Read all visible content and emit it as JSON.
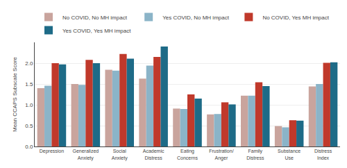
{
  "chart_data": {
    "type": "bar",
    "categories": [
      "Depression",
      "Generalized\nAnxiety",
      "Social\nAnxiety",
      "Academic\nDistress",
      "Eating\nConcerns",
      "Frustration/\nAnger",
      "Family\nDistress",
      "Substance\nUse",
      "Distress\nIndex"
    ],
    "series": [
      {
        "name": "No COVID, No MH impact",
        "color": "#c9a49d",
        "values": [
          1.4,
          1.5,
          1.84,
          1.63,
          0.91,
          0.77,
          1.22,
          0.49,
          1.44
        ]
      },
      {
        "name": "Yes COVID, No MH impact",
        "color": "#8bb4c8",
        "values": [
          1.46,
          1.48,
          1.82,
          1.94,
          0.9,
          0.78,
          1.22,
          0.46,
          1.5
        ]
      },
      {
        "name": "No COVID, Yes MH impact",
        "color": "#c0392b",
        "values": [
          2.0,
          2.08,
          2.22,
          2.15,
          1.25,
          1.06,
          1.54,
          0.63,
          2.01
        ]
      },
      {
        "name": "Yes COVID, Yes MH impact",
        "color": "#1e6b87",
        "values": [
          1.97,
          2.0,
          2.11,
          2.4,
          1.15,
          1.01,
          1.45,
          0.62,
          2.02
        ]
      }
    ],
    "ylabel": "Mean CCAPS Subscale Score",
    "ylim": [
      0,
      2.5
    ],
    "yticks": [
      {
        "value": 0.0,
        "label": "0.0"
      },
      0.5,
      {
        "value": 1.0,
        "label": "1.0"
      },
      1.5,
      {
        "value": 2.0,
        "label": "2.0"
      }
    ],
    "grid": true,
    "legend": "top"
  }
}
